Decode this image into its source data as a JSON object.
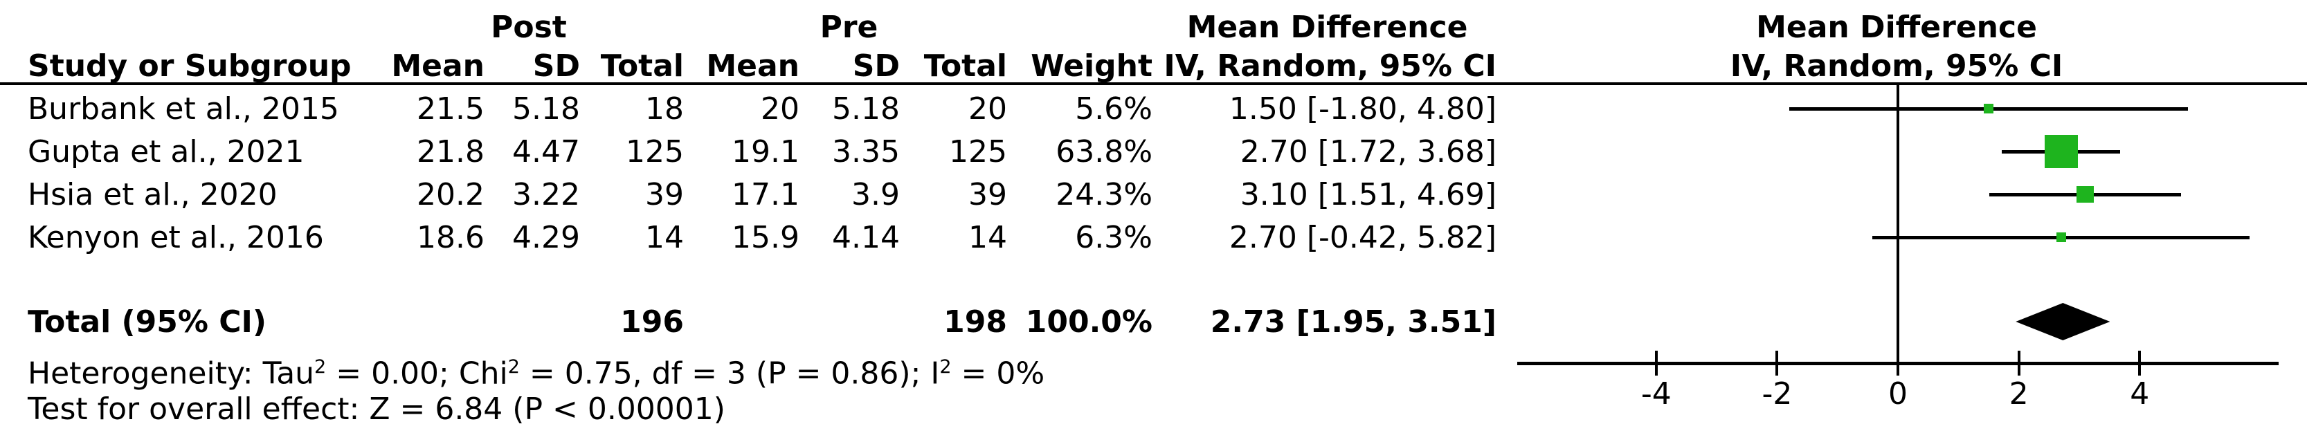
{
  "header": {
    "group_post": "Post",
    "group_pre": "Pre",
    "effect_line1": "Mean Difference",
    "effect_line2": "IV, Random, 95% CI",
    "study_col": "Study or Subgroup",
    "mean_col": "Mean",
    "sd_col": "SD",
    "total_col": "Total",
    "weight_col": "Weight"
  },
  "rows": [
    {
      "name": "Burbank et al., 2015",
      "post_mean": "21.5",
      "post_sd": "5.18",
      "post_total": "18",
      "pre_mean": "20",
      "pre_sd": "5.18",
      "pre_total": "20",
      "weight": "5.6%",
      "ci": "1.50 [-1.80, 4.80]"
    },
    {
      "name": "Gupta et al., 2021",
      "post_mean": "21.8",
      "post_sd": "4.47",
      "post_total": "125",
      "pre_mean": "19.1",
      "pre_sd": "3.35",
      "pre_total": "125",
      "weight": "63.8%",
      "ci": "2.70 [1.72, 3.68]"
    },
    {
      "name": "Hsia et al., 2020",
      "post_mean": "20.2",
      "post_sd": "3.22",
      "post_total": "39",
      "pre_mean": "17.1",
      "pre_sd": "3.9",
      "pre_total": "39",
      "weight": "24.3%",
      "ci": "3.10 [1.51, 4.69]"
    },
    {
      "name": "Kenyon et al., 2016",
      "post_mean": "18.6",
      "post_sd": "4.29",
      "post_total": "14",
      "pre_mean": "15.9",
      "pre_sd": "4.14",
      "pre_total": "14",
      "weight": "6.3%",
      "ci": "2.70 [-0.42, 5.82]"
    }
  ],
  "total_row": {
    "label": "Total (95% CI)",
    "post_total": "196",
    "pre_total": "198",
    "weight": "100.0%",
    "ci": "2.73 [1.95, 3.51]"
  },
  "footer": {
    "het": [
      "Heterogeneity: Tau",
      "2",
      " = 0.00; Chi",
      "2",
      " = 0.75, df = 3 (P = 0.86); I",
      "2",
      " = 0%"
    ],
    "test": "Test for overall effect: Z = 6.84 (P < 0.00001)"
  },
  "colors": {
    "square_green": "#1eb41e",
    "line_black": "#000000"
  },
  "chart_data": {
    "type": "forest",
    "title": "Mean Difference",
    "method": "IV, Random, 95% CI",
    "xlim": [
      -6.3,
      6.3
    ],
    "x_ticks": [
      -4,
      -2,
      0,
      2,
      4
    ],
    "null_line": 0,
    "studies": [
      {
        "label": "Burbank et al., 2015",
        "effect": 1.5,
        "ci_low": -1.8,
        "ci_high": 4.8,
        "weight_pct": 5.6
      },
      {
        "label": "Gupta et al., 2021",
        "effect": 2.7,
        "ci_low": 1.72,
        "ci_high": 3.68,
        "weight_pct": 63.8
      },
      {
        "label": "Hsia et al., 2020",
        "effect": 3.1,
        "ci_low": 1.51,
        "ci_high": 4.69,
        "weight_pct": 24.3
      },
      {
        "label": "Kenyon et al., 2016",
        "effect": 2.7,
        "ci_low": -0.42,
        "ci_high": 5.82,
        "weight_pct": 6.3
      }
    ],
    "total": {
      "label": "Total (95% CI)",
      "effect": 2.73,
      "ci_low": 1.95,
      "ci_high": 3.51,
      "weight_pct": 100.0
    }
  }
}
